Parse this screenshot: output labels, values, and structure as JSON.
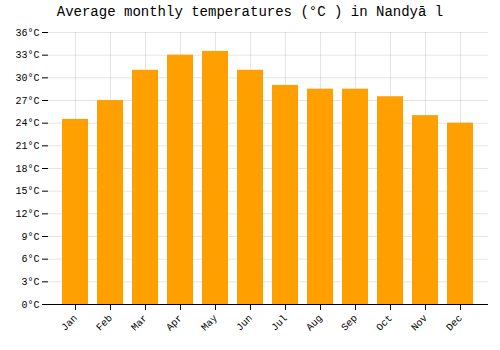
{
  "chart_data": {
    "type": "bar",
    "title": "Average monthly temperatures (°C ) in Nandyā l",
    "categories": [
      "Jan",
      "Feb",
      "Mar",
      "Apr",
      "May",
      "Jun",
      "Jul",
      "Aug",
      "Sep",
      "Oct",
      "Nov",
      "Dec"
    ],
    "values": [
      24.5,
      27.0,
      31.0,
      33.0,
      33.5,
      31.0,
      29.0,
      28.5,
      28.5,
      27.5,
      25.0,
      24.0
    ],
    "color": "#FFA000",
    "ylim": [
      0,
      36
    ],
    "yticks": [
      {
        "value": 0,
        "label": "0°C"
      },
      {
        "value": 3,
        "label": "3°C"
      },
      {
        "value": 6,
        "label": "6°C"
      },
      {
        "value": 9,
        "label": "9°C"
      },
      {
        "value": 12,
        "label": "12°C"
      },
      {
        "value": 15,
        "label": "15°C"
      },
      {
        "value": 18,
        "label": "18°C"
      },
      {
        "value": 21,
        "label": "21°C"
      },
      {
        "value": 24,
        "label": "24°C"
      },
      {
        "value": 27,
        "label": "27°C"
      },
      {
        "value": 30,
        "label": "30°C"
      },
      {
        "value": 33,
        "label": "33°C"
      },
      {
        "value": 36,
        "label": "36°C"
      }
    ],
    "grid": true
  }
}
